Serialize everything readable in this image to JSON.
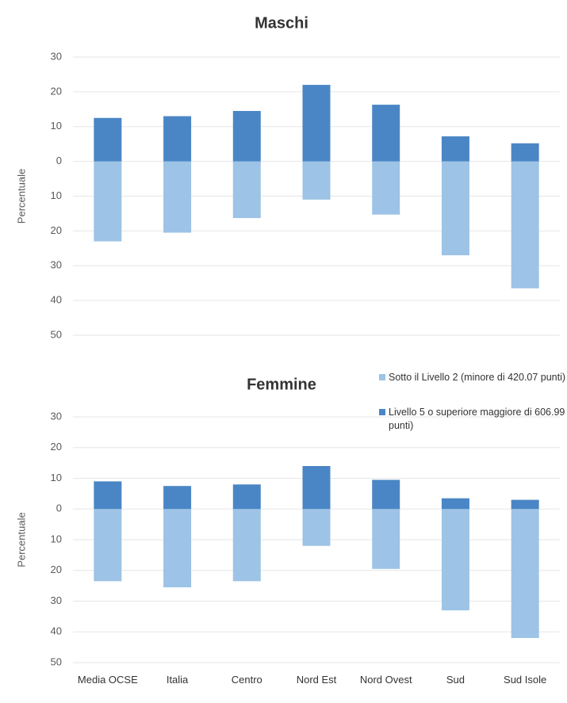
{
  "chart_data": [
    {
      "type": "bar",
      "title": "Maschi",
      "y_label": "Percentuale",
      "ylim": [
        -50,
        30
      ],
      "yticks": [
        {
          "value": -50,
          "label": "50"
        },
        {
          "value": -40,
          "label": "40"
        },
        {
          "value": -30,
          "label": "30"
        },
        {
          "value": -20,
          "label": "20"
        },
        {
          "value": -10,
          "label": "10"
        },
        0,
        10,
        20,
        30
      ],
      "grid": true,
      "series": [
        {
          "name": "Sotto il Livello 2 (minore di 420.07 punti)",
          "color": "#9dc3e6",
          "values": [
            -23,
            -20.5,
            -16.3,
            -11,
            -15.3,
            -27,
            -36.5
          ]
        },
        {
          "name": "Livello 5 o superiore maggiore di 606.99 punti)",
          "color": "#4a86c5",
          "values": [
            12.5,
            13,
            14.5,
            22,
            16.3,
            7.2,
            5.2
          ]
        }
      ]
    },
    {
      "type": "bar",
      "title": "Femmine",
      "y_label": "Percentuale",
      "categories": [
        "Media OCSE",
        "Italia",
        "Centro",
        "Nord Est",
        "Nord Ovest",
        "Sud",
        "Sud Isole"
      ],
      "ylim": [
        -50,
        30
      ],
      "yticks": [
        {
          "value": -50,
          "label": "50"
        },
        {
          "value": -40,
          "label": "40"
        },
        {
          "value": -30,
          "label": "30"
        },
        {
          "value": -20,
          "label": "20"
        },
        {
          "value": -10,
          "label": "10"
        },
        0,
        10,
        20,
        30
      ],
      "grid": true,
      "legend": "upper right",
      "series": [
        {
          "name": "Sotto il Livello 2 (minore di 420.07 punti)",
          "color": "#9dc3e6",
          "values": [
            -23.5,
            -25.5,
            -23.5,
            -12,
            -19.5,
            -33,
            -42
          ]
        },
        {
          "name": "Livello 5 o superiore maggiore di 606.99 punti)",
          "color": "#4a86c5",
          "values": [
            9,
            7.5,
            8,
            14,
            9.5,
            3.5,
            3
          ]
        }
      ]
    }
  ]
}
